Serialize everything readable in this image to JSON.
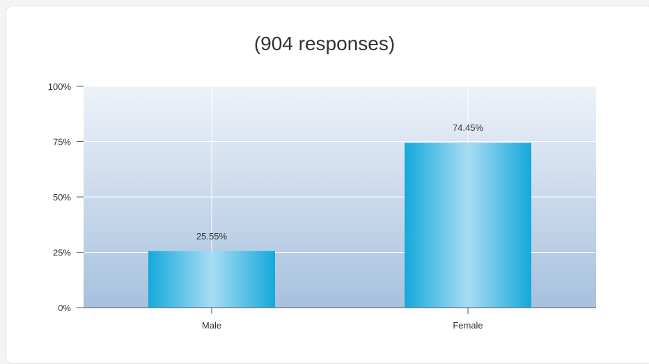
{
  "chart_data": {
    "type": "bar",
    "title": "(904 responses)",
    "xlabel": "",
    "ylabel": "",
    "categories": [
      "Male",
      "Female"
    ],
    "values": [
      25.55,
      74.45
    ],
    "data_labels": [
      "25.55%",
      "74.45%"
    ],
    "ylim": [
      0,
      100
    ],
    "yticks": [
      0,
      25,
      50,
      75,
      100
    ],
    "ytick_labels": [
      "0%",
      "25%",
      "50%",
      "75%",
      "100%"
    ],
    "grid": true,
    "legend": "none",
    "colors": {
      "bar_edge": "#14a9dc",
      "bar_center": "#a8dcf4",
      "plot_bg_top": "#eef2f9",
      "plot_bg_bottom": "#a6c1de",
      "grid": "#ffffff",
      "axis": "#555555"
    }
  }
}
